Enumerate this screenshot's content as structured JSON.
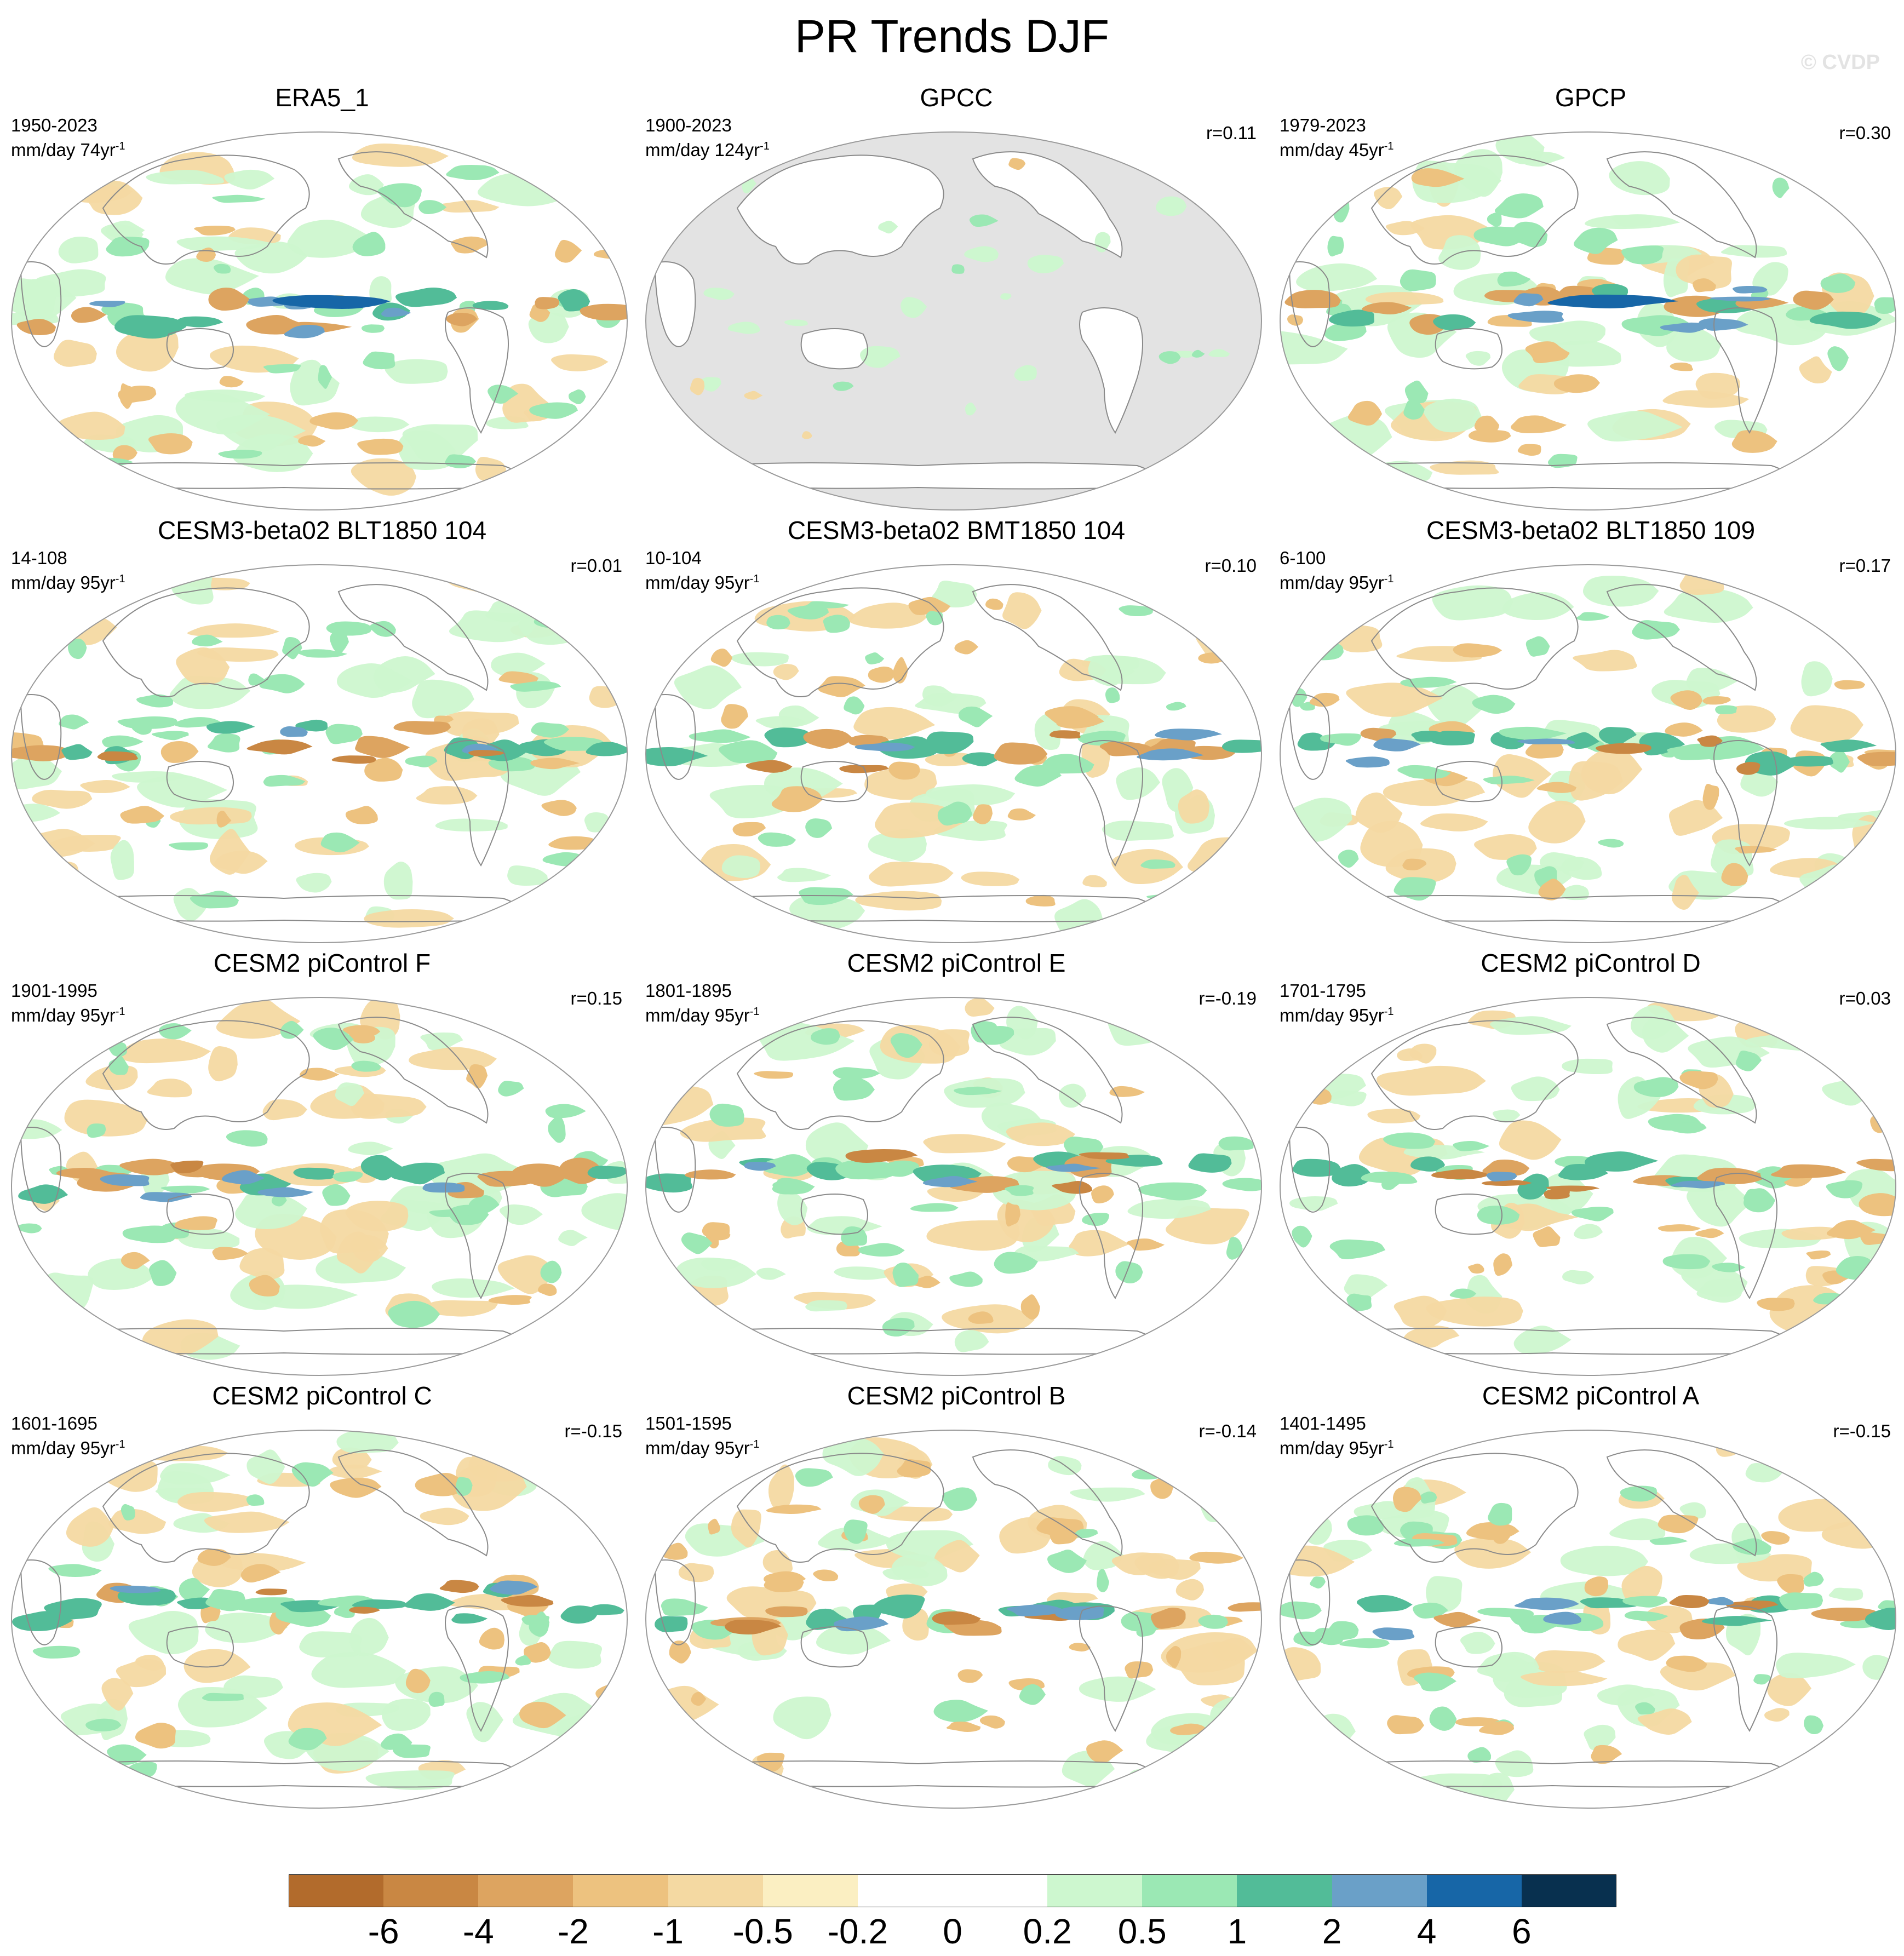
{
  "figure": {
    "title": "PR Trends DJF",
    "watermark": "© CVDP"
  },
  "panels": [
    {
      "title": "ERA5_1",
      "period": "1950-2023",
      "units": "mm/day",
      "trend_length": "74yr",
      "corr": "",
      "observed_masked": false,
      "pattern": 0
    },
    {
      "title": "GPCC",
      "period": "1900-2023",
      "units": "mm/day",
      "trend_length": "124yr",
      "corr": "r=0.11",
      "observed_masked": true,
      "pattern": 1
    },
    {
      "title": "GPCP",
      "period": "1979-2023",
      "units": "mm/day",
      "trend_length": "45yr",
      "corr": "r=0.30",
      "observed_masked": false,
      "pattern": 2
    },
    {
      "title": "CESM3-beta02 BLT1850 104",
      "period": "14-108",
      "units": "mm/day",
      "trend_length": "95yr",
      "corr": "r=0.01",
      "observed_masked": false,
      "pattern": 3
    },
    {
      "title": "CESM3-beta02 BMT1850 104",
      "period": "10-104",
      "units": "mm/day",
      "trend_length": "95yr",
      "corr": "r=0.10",
      "observed_masked": false,
      "pattern": 4
    },
    {
      "title": "CESM3-beta02 BLT1850 109",
      "period": "6-100",
      "units": "mm/day",
      "trend_length": "95yr",
      "corr": "r=0.17",
      "observed_masked": false,
      "pattern": 5
    },
    {
      "title": "CESM2 piControl F",
      "period": "1901-1995",
      "units": "mm/day",
      "trend_length": "95yr",
      "corr": "r=0.15",
      "observed_masked": false,
      "pattern": 6
    },
    {
      "title": "CESM2 piControl E",
      "period": "1801-1895",
      "units": "mm/day",
      "trend_length": "95yr",
      "corr": "r=-0.19",
      "observed_masked": false,
      "pattern": 7
    },
    {
      "title": "CESM2 piControl D",
      "period": "1701-1795",
      "units": "mm/day",
      "trend_length": "95yr",
      "corr": "r=0.03",
      "observed_masked": false,
      "pattern": 8
    },
    {
      "title": "CESM2 piControl C",
      "period": "1601-1695",
      "units": "mm/day",
      "trend_length": "95yr",
      "corr": "r=-0.15",
      "observed_masked": false,
      "pattern": 9
    },
    {
      "title": "CESM2 piControl B",
      "period": "1501-1595",
      "units": "mm/day",
      "trend_length": "95yr",
      "corr": "r=-0.14",
      "observed_masked": false,
      "pattern": 10
    },
    {
      "title": "CESM2 piControl A",
      "period": "1401-1495",
      "units": "mm/day",
      "trend_length": "95yr",
      "corr": "r=-0.15",
      "observed_masked": false,
      "pattern": 11
    }
  ],
  "colorbar": {
    "labels": [
      "-6",
      "-4",
      "-2",
      "-1",
      "-0.5",
      "-0.2",
      "0",
      "0.2",
      "0.5",
      "1",
      "2",
      "4",
      "6"
    ],
    "colors": [
      "#b26b2c",
      "#c98743",
      "#dda460",
      "#edc27f",
      "#f4d9a2",
      "#fbefc2",
      "#ffffff",
      "#ffffff",
      "#cdf7cf",
      "#9be8b4",
      "#52bc98",
      "#6aa0c8",
      "#1766a7",
      "#08304f"
    ]
  },
  "map_style": {
    "land_mask_color": "#e3e3e3",
    "coast_color": "#8a8a8a",
    "outline_color": "#9a9a9a"
  }
}
